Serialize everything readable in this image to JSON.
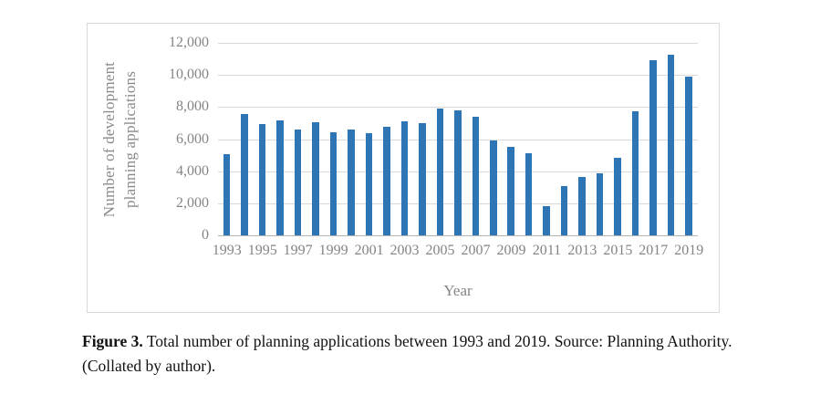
{
  "figure": {
    "caption_label": "Figure 3.",
    "caption_text": "Total number of planning applications between 1993 and 2019. Source: Planning Authority.",
    "caption_line2": "(Collated by author)."
  },
  "colors": {
    "bar": "#2E75B6",
    "axis_text": "#848484",
    "gridline": "#d9d9d9",
    "chart_border": "#d9d9d9"
  },
  "chart_data": {
    "type": "bar",
    "title": "",
    "xlabel": "Year",
    "ylabel": "Number of development planning applications",
    "ylabel_line1": "Number of development",
    "ylabel_line2": "planning applications",
    "ylim": [
      0,
      12000
    ],
    "grid": true,
    "legend": "none",
    "bar_color": "#2E75B6",
    "yticks": [
      0,
      2000,
      4000,
      6000,
      8000,
      10000,
      12000
    ],
    "ytick_labels": [
      "0",
      "2,000",
      "4,000",
      "6,000",
      "8,000",
      "10,000",
      "12,000"
    ],
    "xtick_labels": [
      "1993",
      "1995",
      "1997",
      "1999",
      "2001",
      "2003",
      "2005",
      "2007",
      "2009",
      "2011",
      "2013",
      "2015",
      "2017",
      "2019"
    ],
    "categories": [
      1993,
      1994,
      1995,
      1996,
      1997,
      1998,
      1999,
      2000,
      2001,
      2002,
      2003,
      2004,
      2005,
      2006,
      2007,
      2008,
      2009,
      2010,
      2011,
      2012,
      2013,
      2014,
      2015,
      2016,
      2017,
      2018,
      2019
    ],
    "values": [
      5100,
      7600,
      7000,
      7200,
      6650,
      7100,
      6500,
      6650,
      6450,
      6850,
      7150,
      7050,
      7950,
      7850,
      7450,
      6000,
      5600,
      5200,
      1900,
      3150,
      3700,
      3900,
      4900,
      7800,
      11000,
      11300,
      9950
    ]
  }
}
